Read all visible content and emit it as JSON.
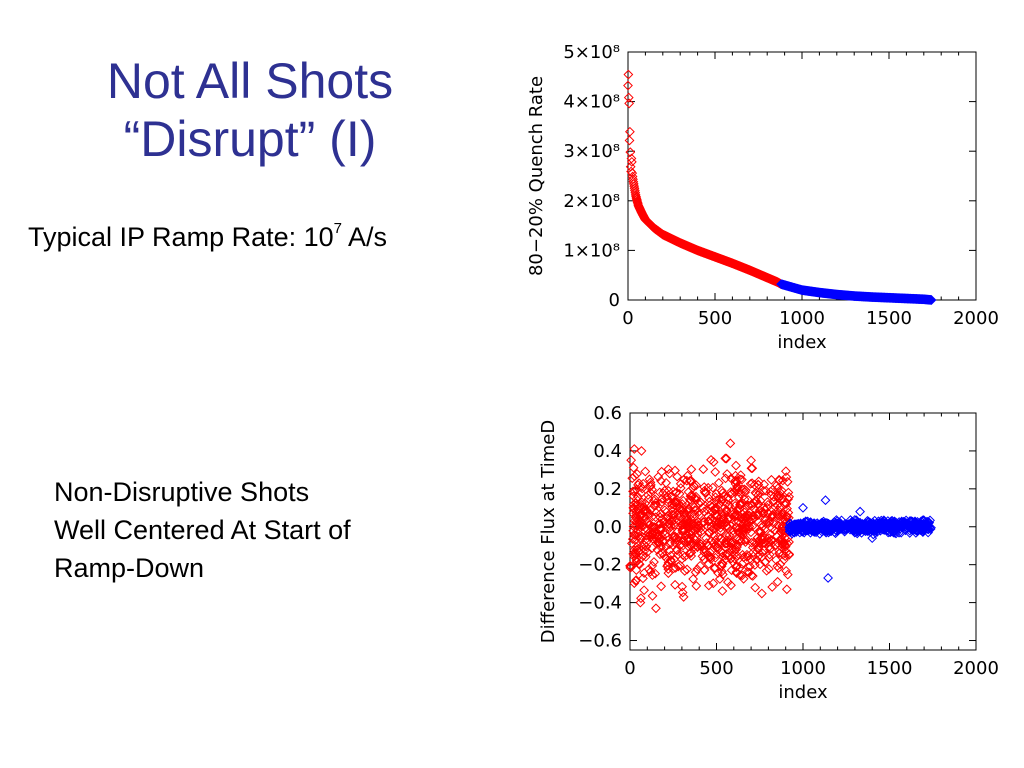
{
  "slide": {
    "title_line1": "Not All Shots",
    "title_line2": "“Disrupt” (I)",
    "ramp_text": "Typical IP Ramp Rate: 10",
    "ramp_exp": "7",
    "ramp_unit": " A/s",
    "nondis_line1": "Non-Disruptive Shots",
    "nondis_line2": "Well Centered At Start of",
    "nondis_line3": "Ramp-Down",
    "colors": {
      "title": "#2e3192",
      "red_series": "#ff0000",
      "blue_series": "#0000ff"
    }
  },
  "chart_data": [
    {
      "type": "scatter",
      "xlabel": "index",
      "ylabel": "80−20% Quench Rate",
      "xlim": [
        0,
        2000
      ],
      "ylim": [
        0,
        500000000
      ],
      "xticks": [
        "0",
        "500",
        "1000",
        "1500",
        "2000"
      ],
      "yticks": [
        "0",
        "1×10⁸",
        "2×10⁸",
        "3×10⁸",
        "4×10⁸",
        "5×10⁸"
      ],
      "series": [
        {
          "color": "#ff0000",
          "x_range": [
            0,
            880
          ],
          "points": [
            [
              0,
              450000000
            ],
            [
              3,
              420000000
            ],
            [
              6,
              380000000
            ],
            [
              10,
              330000000
            ],
            [
              15,
              290000000
            ],
            [
              20,
              265000000
            ],
            [
              30,
              240000000
            ],
            [
              45,
              210000000
            ],
            [
              60,
              190000000
            ],
            [
              80,
              175000000
            ],
            [
              100,
              162000000
            ],
            [
              150,
              145000000
            ],
            [
              200,
              132000000
            ],
            [
              300,
              115000000
            ],
            [
              400,
              100000000
            ],
            [
              500,
              87000000
            ],
            [
              600,
              74000000
            ],
            [
              700,
              60000000
            ],
            [
              800,
              45000000
            ],
            [
              860,
              36000000
            ],
            [
              880,
              32000000
            ]
          ]
        },
        {
          "color": "#0000ff",
          "x_range": [
            880,
            1745
          ],
          "points": [
            [
              880,
              32000000
            ],
            [
              950,
              25000000
            ],
            [
              1000,
              20000000
            ],
            [
              1100,
              15000000
            ],
            [
              1200,
              11000000
            ],
            [
              1300,
              8000000
            ],
            [
              1400,
              6000000
            ],
            [
              1500,
              4500000
            ],
            [
              1600,
              3000000
            ],
            [
              1700,
              1500000
            ],
            [
              1740,
              200000
            ],
            [
              1745,
              0
            ]
          ]
        }
      ]
    },
    {
      "type": "scatter",
      "xlabel": "index",
      "ylabel": "Difference Flux at TimeD",
      "xlim": [
        0,
        2000
      ],
      "ylim": [
        -0.65,
        0.6
      ],
      "xticks": [
        "0",
        "500",
        "1000",
        "1500",
        "2000"
      ],
      "yticks": [
        "−0.6",
        "−0.4",
        "−0.2",
        "0.0",
        "0.2",
        "0.4",
        "0.6"
      ],
      "series": [
        {
          "color": "#ff0000",
          "x_range": [
            0,
            920
          ],
          "center": 0.0,
          "spread": 0.42,
          "outliers": [
            [
              25,
              0.41
            ],
            [
              580,
              0.44
            ],
            [
              310,
              -0.37
            ],
            [
              60,
              -0.4
            ],
            [
              150,
              -0.43
            ],
            [
              700,
              0.35
            ]
          ]
        },
        {
          "color": "#0000ff",
          "x_range": [
            920,
            1740
          ],
          "center": 0.0,
          "spread": 0.05,
          "outliers": [
            [
              1130,
              0.14
            ],
            [
              1145,
              -0.27
            ],
            [
              1330,
              0.08
            ],
            [
              1400,
              -0.06
            ],
            [
              1000,
              0.1
            ]
          ]
        }
      ]
    }
  ]
}
